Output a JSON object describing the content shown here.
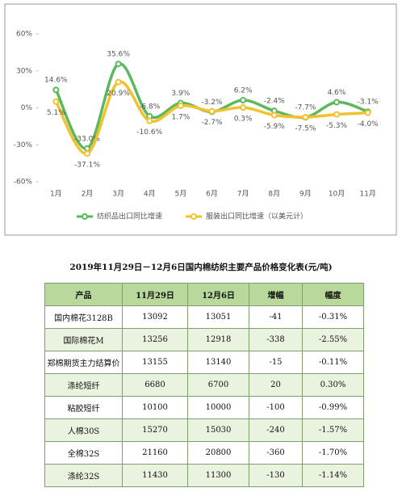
{
  "chart_data": {
    "type": "line",
    "categories": [
      "1月",
      "2月",
      "3月",
      "4月",
      "5月",
      "6月",
      "7月",
      "8月",
      "9月",
      "10月",
      "11月"
    ],
    "series": [
      {
        "name": "纺织品出口同比增速",
        "color": "#5cb85c",
        "values": [
          14.6,
          -33.0,
          35.6,
          -6.8,
          3.9,
          -3.2,
          6.2,
          -2.4,
          -7.7,
          4.6,
          -3.1
        ],
        "value_labels": [
          "14.6%",
          "-33.0%",
          "35.6%",
          "-6.8%",
          "3.9%",
          "-3.2%",
          "6.2%",
          "-2.4%",
          "-7.7%",
          "4.6%",
          "-3.1%"
        ]
      },
      {
        "name": "服装出口同比增速（以美元计）",
        "color": "#f2c12e",
        "values": [
          5.1,
          -37.1,
          20.9,
          -10.6,
          1.7,
          -2.7,
          0.3,
          -5.9,
          -7.5,
          -5.3,
          -4.0
        ],
        "value_labels": [
          "5.1%",
          "-37.1%",
          "20.9%",
          "-10.6%",
          "1.7%",
          "-2.7%",
          "0.3%",
          "-5.9%",
          "-7.5%",
          "-5.3%",
          "-4.0%"
        ]
      }
    ],
    "ylim": [
      -60,
      60
    ],
    "yticks": [
      {
        "value": -60,
        "label": "-60%"
      },
      {
        "value": -30,
        "label": "-30%"
      },
      {
        "value": 0,
        "label": "0%"
      },
      {
        "value": 30,
        "label": "30%"
      },
      {
        "value": 60,
        "label": "60%"
      }
    ]
  },
  "table": {
    "title": "2019年11月29日－12月6日国内棉纺织主要产品价格变化表(元/吨)",
    "headers": [
      "产品",
      "11月29日",
      "12月6日",
      "增幅",
      "幅度"
    ],
    "rows": [
      [
        "国内棉花3128B",
        "13092",
        "13051",
        "-41",
        "-0.31%"
      ],
      [
        "国际棉花M",
        "13256",
        "12918",
        "-338",
        "-2.55%"
      ],
      [
        "郑棉期货主力结算价",
        "13155",
        "13140",
        "-15",
        "-0.11%"
      ],
      [
        "涤纶短纤",
        "6680",
        "6700",
        "20",
        "0.30%"
      ],
      [
        "粘胶短纤",
        "10100",
        "10000",
        "-100",
        "-0.99%"
      ],
      [
        "人棉30S",
        "15270",
        "15030",
        "-240",
        "-1.57%"
      ],
      [
        "全棉32S",
        "21160",
        "20800",
        "-360",
        "-1.70%"
      ],
      [
        "涤纶32S",
        "11430",
        "11300",
        "-130",
        "-1.14%"
      ]
    ]
  }
}
